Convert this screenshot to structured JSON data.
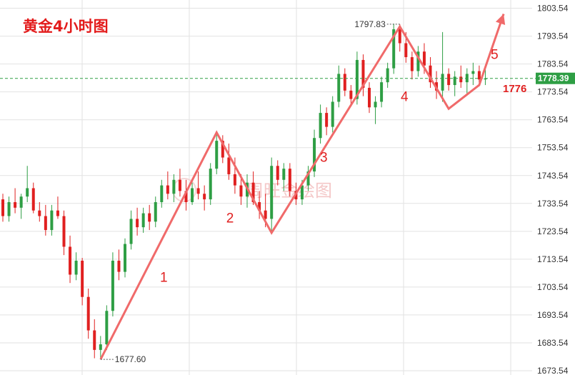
{
  "chart_data": {
    "type": "candlestick",
    "title": "黄金4小时图",
    "watermark": "周旺金绘图",
    "y_axis": {
      "ticks": [
        "1803.54",
        "1793.54",
        "1783.54",
        "1773.54",
        "1763.54",
        "1753.54",
        "1743.54",
        "1733.54",
        "1723.54",
        "1713.54",
        "1703.54",
        "1693.54",
        "1683.54",
        "1673.54"
      ],
      "range": [
        1672.0,
        1806.5
      ]
    },
    "current_price": {
      "value": 1778.39,
      "label": "1778.39",
      "color": "#2e9e44"
    },
    "annotations": {
      "high": {
        "value": 1797.83,
        "label": "1797.83"
      },
      "low": {
        "value": 1677.6,
        "label": "1677.60"
      },
      "level": {
        "value": 1776,
        "label": "1776"
      }
    },
    "wave_labels": [
      "1",
      "2",
      "3",
      "4",
      "5"
    ],
    "wave_path": [
      {
        "bar": 16,
        "price": 1677.6
      },
      {
        "bar": 35,
        "price": 1759.0
      },
      {
        "bar": 44,
        "price": 1723.0
      },
      {
        "bar": 65,
        "price": 1797.0
      },
      {
        "bar": 73,
        "price": 1767.5
      },
      {
        "bar": 78,
        "price": 1776.0
      },
      {
        "bar": 82,
        "price": 1801.5
      }
    ],
    "colors": {
      "up": "#2e9e44",
      "down": "#e02020",
      "wave": "#f06a6a",
      "grid": "#e2e2e2"
    },
    "grid": true,
    "candles": [
      [
        1735,
        1737,
        1727,
        1729
      ],
      [
        1729,
        1736,
        1727,
        1734
      ],
      [
        1734,
        1739,
        1730,
        1732
      ],
      [
        1732,
        1737,
        1728,
        1736
      ],
      [
        1736,
        1747,
        1734,
        1739
      ],
      [
        1739,
        1741,
        1730,
        1731
      ],
      [
        1731,
        1734,
        1727,
        1729
      ],
      [
        1729,
        1733,
        1722,
        1724
      ],
      [
        1724,
        1733,
        1722,
        1731
      ],
      [
        1731,
        1736,
        1728,
        1729
      ],
      [
        1729,
        1731,
        1715,
        1718
      ],
      [
        1718,
        1722,
        1705,
        1708
      ],
      [
        1708,
        1716,
        1706,
        1713
      ],
      [
        1713,
        1714,
        1697,
        1700
      ],
      [
        1700,
        1703,
        1685,
        1688
      ],
      [
        1688,
        1692,
        1678,
        1681
      ],
      [
        1681,
        1686,
        1677.6,
        1683
      ],
      [
        1683,
        1697,
        1681,
        1695
      ],
      [
        1695,
        1716,
        1693,
        1713
      ],
      [
        1713,
        1717,
        1706,
        1709
      ],
      [
        1709,
        1721,
        1707,
        1719
      ],
      [
        1719,
        1731,
        1717,
        1728
      ],
      [
        1728,
        1732,
        1722,
        1725
      ],
      [
        1725,
        1732,
        1723,
        1730
      ],
      [
        1730,
        1733,
        1724,
        1727
      ],
      [
        1727,
        1736,
        1725,
        1734
      ],
      [
        1734,
        1742,
        1732,
        1740
      ],
      [
        1740,
        1745,
        1735,
        1737
      ],
      [
        1737,
        1744,
        1734,
        1742
      ],
      [
        1742,
        1746,
        1736,
        1738
      ],
      [
        1738,
        1742,
        1731,
        1734
      ],
      [
        1734,
        1741,
        1733,
        1739
      ],
      [
        1739,
        1745,
        1735,
        1737
      ],
      [
        1737,
        1740,
        1731,
        1735
      ],
      [
        1735,
        1748,
        1733,
        1746
      ],
      [
        1746,
        1759,
        1744,
        1756
      ],
      [
        1756,
        1758,
        1748,
        1750
      ],
      [
        1750,
        1755,
        1742,
        1744
      ],
      [
        1744,
        1750,
        1737,
        1740
      ],
      [
        1740,
        1744,
        1733,
        1736
      ],
      [
        1736,
        1744,
        1732,
        1741
      ],
      [
        1741,
        1745,
        1733,
        1734
      ],
      [
        1734,
        1738,
        1728,
        1731
      ],
      [
        1731,
        1737,
        1725,
        1728
      ],
      [
        1728,
        1750,
        1723,
        1747
      ],
      [
        1747,
        1749,
        1740,
        1742
      ],
      [
        1742,
        1748,
        1738,
        1746
      ],
      [
        1746,
        1748,
        1736,
        1738
      ],
      [
        1738,
        1741,
        1733,
        1735
      ],
      [
        1735,
        1742,
        1733,
        1740
      ],
      [
        1740,
        1747,
        1738,
        1745
      ],
      [
        1745,
        1760,
        1743,
        1757
      ],
      [
        1757,
        1769,
        1755,
        1766
      ],
      [
        1766,
        1768,
        1758,
        1761
      ],
      [
        1761,
        1772,
        1759,
        1770
      ],
      [
        1770,
        1783,
        1768,
        1780
      ],
      [
        1780,
        1782,
        1772,
        1774
      ],
      [
        1774,
        1776,
        1769,
        1771
      ],
      [
        1771,
        1788,
        1769,
        1785
      ],
      [
        1785,
        1787,
        1772,
        1775
      ],
      [
        1775,
        1777,
        1766,
        1768
      ],
      [
        1768,
        1772,
        1762,
        1770
      ],
      [
        1770,
        1779,
        1768,
        1777
      ],
      [
        1777,
        1784,
        1775,
        1782
      ],
      [
        1782,
        1798,
        1780,
        1796
      ],
      [
        1796,
        1797.83,
        1788,
        1791
      ],
      [
        1791,
        1795,
        1784,
        1786
      ],
      [
        1786,
        1788,
        1778,
        1781
      ],
      [
        1781,
        1790,
        1779,
        1788
      ],
      [
        1788,
        1791,
        1780,
        1783
      ],
      [
        1783,
        1786,
        1775,
        1777
      ],
      [
        1777,
        1781,
        1771,
        1774
      ],
      [
        1774,
        1795,
        1770,
        1780
      ],
      [
        1780,
        1782,
        1774,
        1776
      ],
      [
        1776,
        1781,
        1772,
        1779
      ],
      [
        1779,
        1783,
        1775,
        1777
      ],
      [
        1777,
        1782,
        1773,
        1780
      ],
      [
        1780,
        1784,
        1776,
        1781
      ],
      [
        1781,
        1783,
        1776,
        1778
      ],
      [
        1778,
        1782,
        1776,
        1778.39
      ]
    ]
  }
}
